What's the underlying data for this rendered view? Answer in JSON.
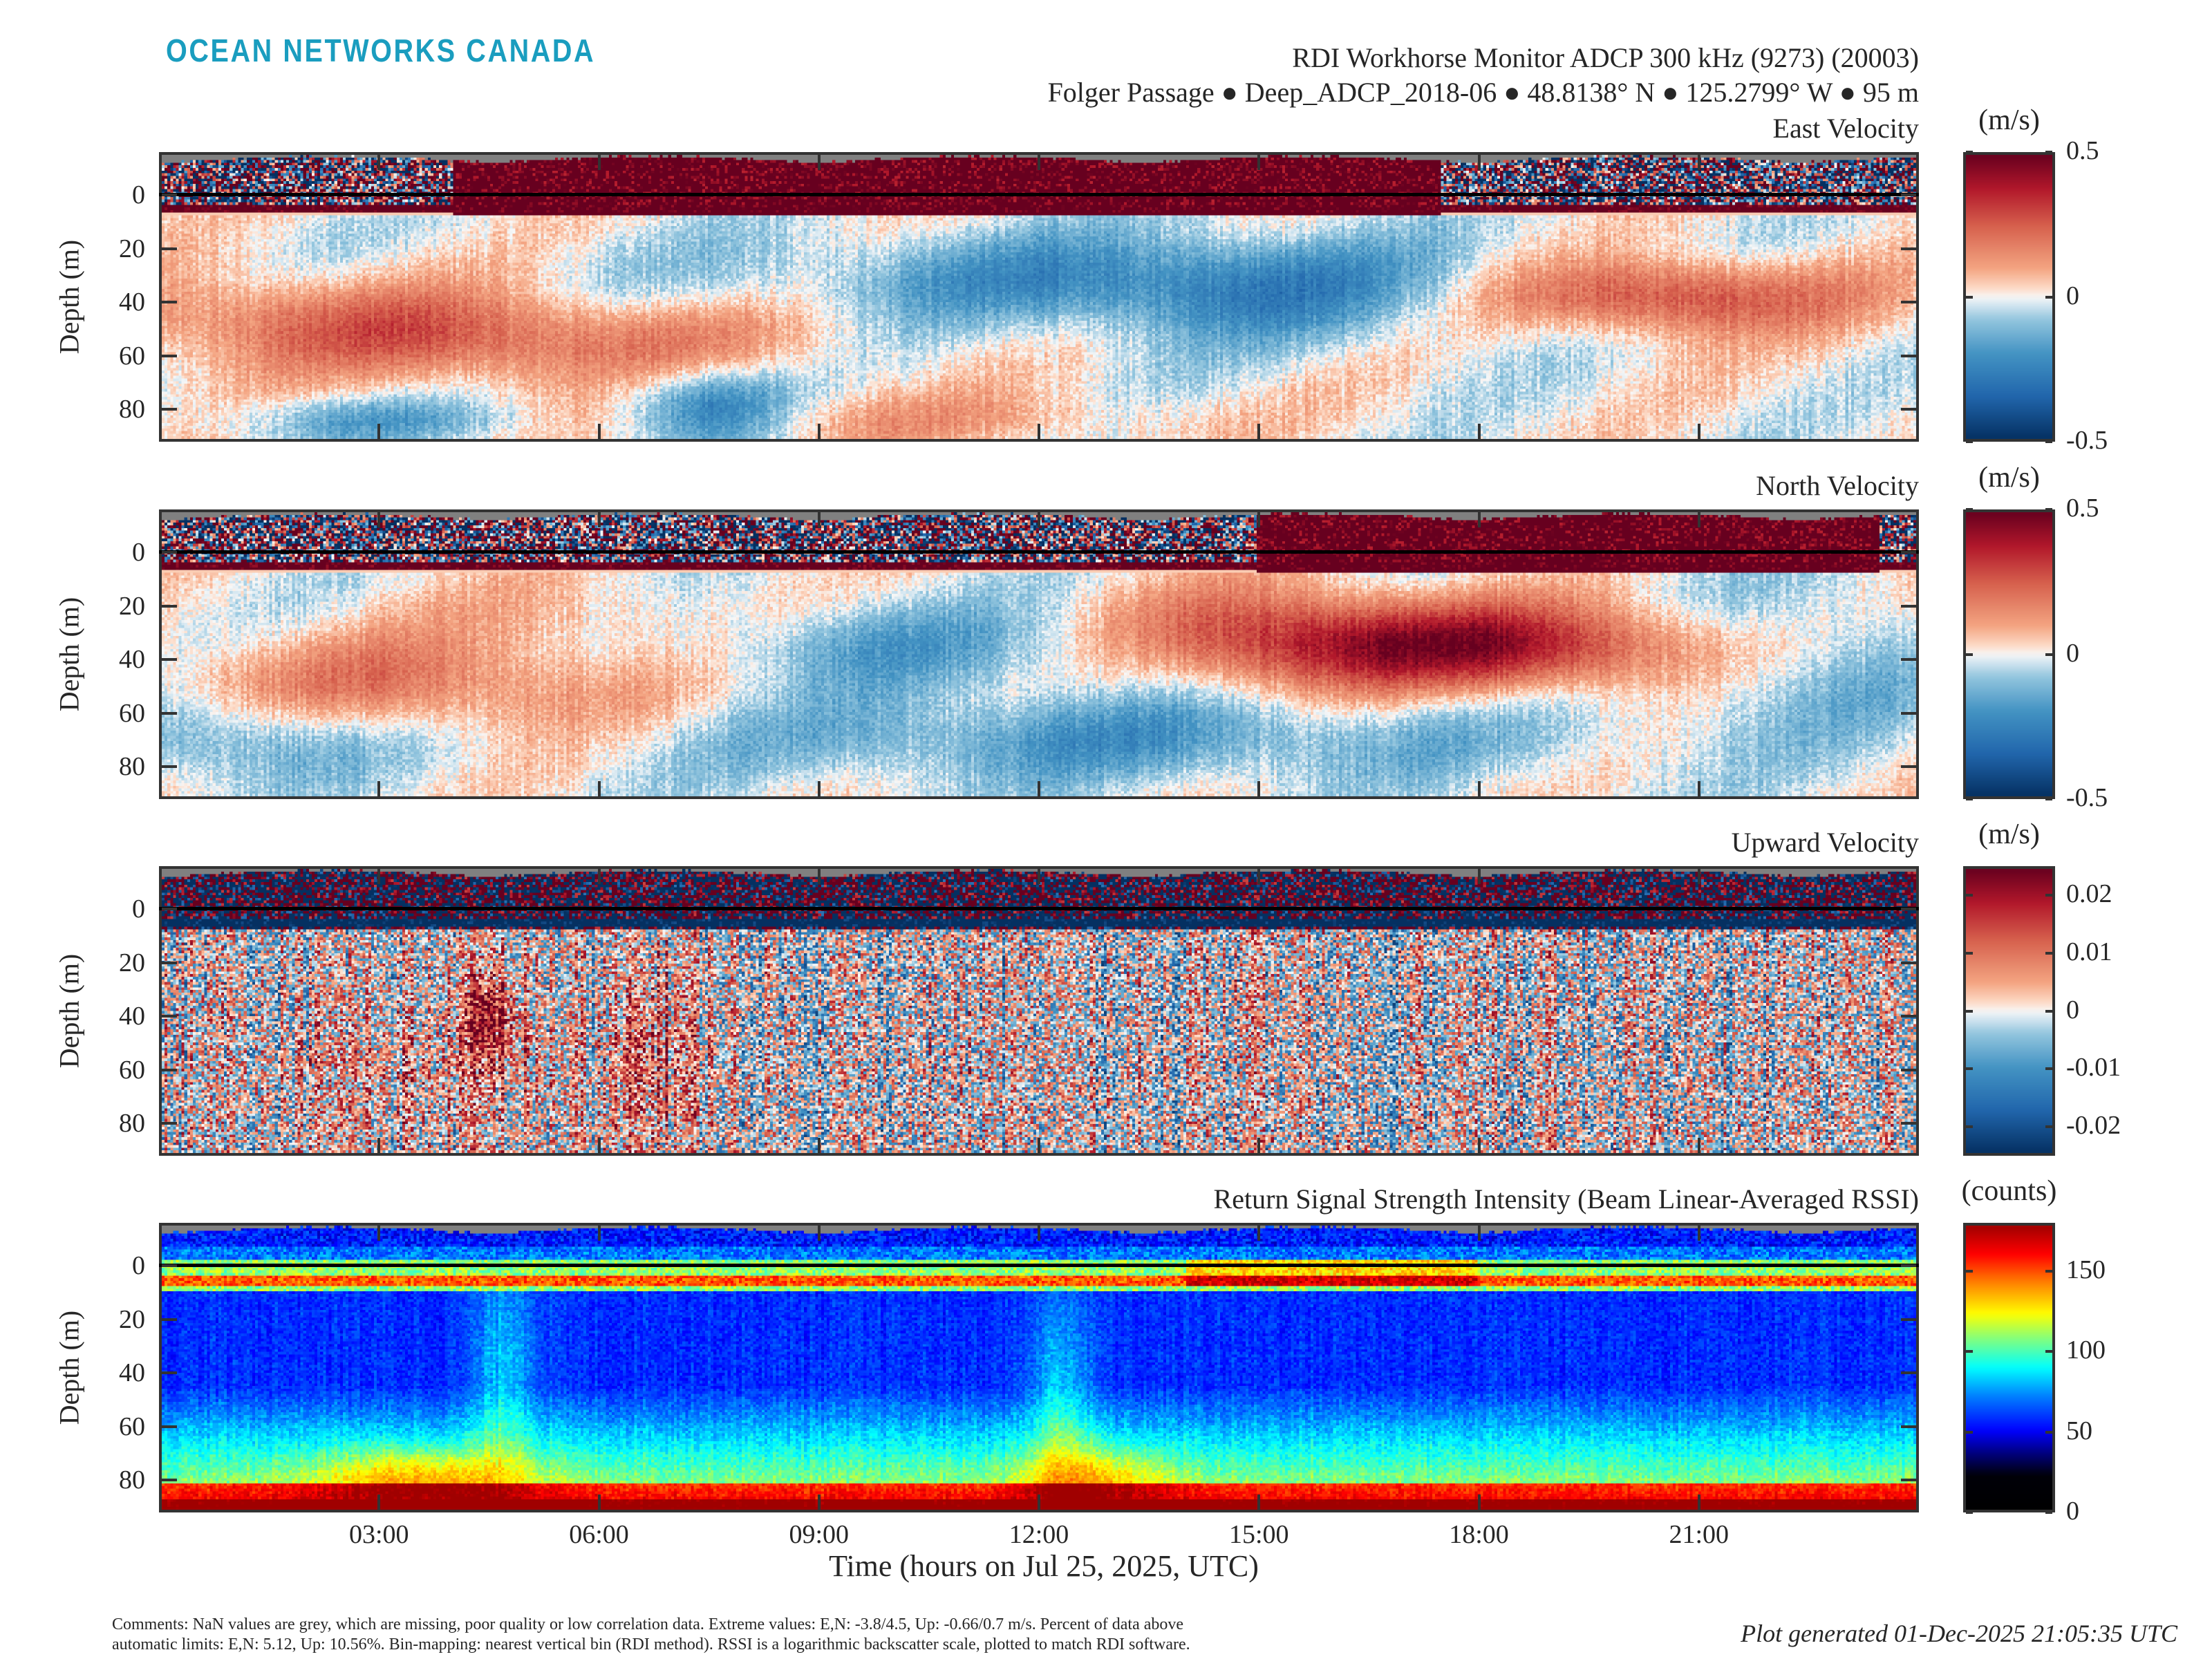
{
  "header": {
    "logo": "OCEAN NETWORKS CANADA",
    "title": "RDI Workhorse Monitor ADCP 300 kHz (9273) (20003)",
    "subtitle": "Folger Passage ● Deep_ADCP_2018-06 ● 48.8138° N ● 125.2799° W ● 95 m"
  },
  "colors": {
    "nan_grey": "#808080",
    "axis": "#333333",
    "logo": "#1a9dbf"
  },
  "chart_data": [
    {
      "type": "heatmap",
      "title": "East Velocity",
      "ylabel": "Depth (m)",
      "colorbar_label": "(m/s)",
      "colormap": "RdBu",
      "clim": [
        -0.5,
        0.5
      ],
      "colorbar_ticks": [
        0.5,
        0,
        -0.5
      ],
      "colorbar_ticklabels": [
        "0.5",
        "0",
        "-0.5"
      ],
      "xlim": [
        0,
        24
      ],
      "ylim": [
        -16,
        92
      ],
      "yticks": [
        0,
        20,
        40,
        60,
        80
      ],
      "yticklabels": [
        "0",
        "20",
        "40",
        "60",
        "80"
      ],
      "surface_value": 0.6,
      "surface_hours": [
        4,
        17.5
      ],
      "features": [
        {
          "t": 15,
          "d": 35,
          "st": 2.5,
          "sd": 14,
          "a": -0.22
        },
        {
          "t": 11,
          "d": 30,
          "st": 3,
          "sd": 12,
          "a": -0.12
        },
        {
          "t": 20.5,
          "d": 38,
          "st": 1.8,
          "sd": 10,
          "a": 0.32
        },
        {
          "t": 5,
          "d": 55,
          "st": 2.5,
          "sd": 12,
          "a": 0.22
        },
        {
          "t": 1.5,
          "d": 45,
          "st": 2,
          "sd": 12,
          "a": 0.15
        },
        {
          "t": 7.5,
          "d": 80,
          "st": 0.8,
          "sd": 10,
          "a": -0.28
        },
        {
          "t": 3,
          "d": 85,
          "st": 1.5,
          "sd": 6,
          "a": -0.15
        },
        {
          "t": 10,
          "d": 85,
          "st": 3,
          "sd": 8,
          "a": 0.1
        }
      ]
    },
    {
      "type": "heatmap",
      "title": "North Velocity",
      "ylabel": "Depth (m)",
      "colorbar_label": "(m/s)",
      "colormap": "RdBu",
      "clim": [
        -0.5,
        0.5
      ],
      "colorbar_ticks": [
        0.5,
        0,
        -0.5
      ],
      "colorbar_ticklabels": [
        "0.5",
        "0",
        "-0.5"
      ],
      "xlim": [
        0,
        24
      ],
      "ylim": [
        -16,
        92
      ],
      "yticks": [
        0,
        20,
        40,
        60,
        80
      ],
      "yticklabels": [
        "0",
        "20",
        "40",
        "60",
        "80"
      ],
      "surface_value": 0.6,
      "surface_hours": [
        15,
        23.5
      ],
      "features": [
        {
          "t": 18,
          "d": 35,
          "st": 2.5,
          "sd": 12,
          "a": 0.42
        },
        {
          "t": 15,
          "d": 30,
          "st": 1.5,
          "sd": 14,
          "a": 0.2
        },
        {
          "t": 10,
          "d": 35,
          "st": 3,
          "sd": 12,
          "a": -0.15
        },
        {
          "t": 13,
          "d": 70,
          "st": 4,
          "sd": 12,
          "a": -0.18
        },
        {
          "t": 3.5,
          "d": 50,
          "st": 2.5,
          "sd": 14,
          "a": 0.2
        },
        {
          "t": 1,
          "d": 70,
          "st": 1.5,
          "sd": 12,
          "a": -0.18
        },
        {
          "t": 22.5,
          "d": 40,
          "st": 1.5,
          "sd": 20,
          "a": -0.15
        },
        {
          "t": 6,
          "d": 25,
          "st": 1.5,
          "sd": 12,
          "a": 0.1
        }
      ]
    },
    {
      "type": "heatmap",
      "title": "Upward Velocity",
      "ylabel": "Depth (m)",
      "colorbar_label": "(m/s)",
      "colormap": "RdBu",
      "clim": [
        -0.025,
        0.025
      ],
      "colorbar_ticks": [
        0.02,
        0.01,
        0,
        -0.01,
        -0.02
      ],
      "colorbar_ticklabels": [
        "0.02",
        "0.01",
        "0",
        "-0.01",
        "-0.02"
      ],
      "xlim": [
        0,
        24
      ],
      "ylim": [
        -16,
        92
      ],
      "yticks": [
        0,
        20,
        40,
        60,
        80
      ],
      "yticklabels": [
        "0",
        "20",
        "40",
        "60",
        "80"
      ],
      "surface_value": 0.03,
      "surface_hours": [
        0,
        24
      ],
      "features": [
        {
          "t": 4.5,
          "d": 40,
          "st": 0.25,
          "sd": 12,
          "a": 0.02
        },
        {
          "t": 6.8,
          "d": 55,
          "st": 0.4,
          "sd": 25,
          "a": 0.012
        },
        {
          "t": 3.5,
          "d": 60,
          "st": 1.5,
          "sd": 20,
          "a": 0.006
        }
      ]
    },
    {
      "type": "heatmap",
      "title": "Return Signal Strength Intensity (Beam Linear-Averaged RSSI)",
      "ylabel": "Depth (m)",
      "colorbar_label": "(counts)",
      "colormap": "jet",
      "clim": [
        0,
        180
      ],
      "colorbar_ticks": [
        150,
        100,
        50,
        0
      ],
      "colorbar_ticklabels": [
        "150",
        "100",
        "50",
        "0"
      ],
      "xlim": [
        0,
        24
      ],
      "ylim": [
        -16,
        92
      ],
      "yticks": [
        0,
        20,
        40,
        60,
        80
      ],
      "yticklabels": [
        "0",
        "20",
        "40",
        "60",
        "80"
      ],
      "xticks": [
        3,
        6,
        9,
        12,
        15,
        18,
        21
      ],
      "xticklabels": [
        "03:00",
        "06:00",
        "09:00",
        "12:00",
        "15:00",
        "18:00",
        "21:00"
      ],
      "xlabel": "Time (hours on Jul 25, 2025, UTC)",
      "features": [
        {
          "t": 4.7,
          "d": 40,
          "st": 0.3,
          "sd": 30,
          "a": 25
        },
        {
          "t": 12.3,
          "d": 50,
          "st": 0.3,
          "sd": 30,
          "a": 25
        },
        {
          "t": 3.5,
          "d": 80,
          "st": 1.0,
          "sd": 8,
          "a": 30
        },
        {
          "t": 12.8,
          "d": 80,
          "st": 0.7,
          "sd": 8,
          "a": 25
        }
      ]
    }
  ],
  "footer": {
    "comments_line1": "Comments: NaN values are grey, which are missing, poor quality or low correlation data. Extreme values: E,N: -3.8/4.5, Up: -0.66/0.7 m/s. Percent of data above",
    "comments_line2": "automatic limits: E,N: 5.12, Up: 10.56%. Bin-mapping: nearest vertical bin (RDI method). RSSI is a logarithmic backscatter scale, plotted to match RDI software.",
    "generated": "Plot generated 01-Dec-2025 21:05:35 UTC"
  }
}
